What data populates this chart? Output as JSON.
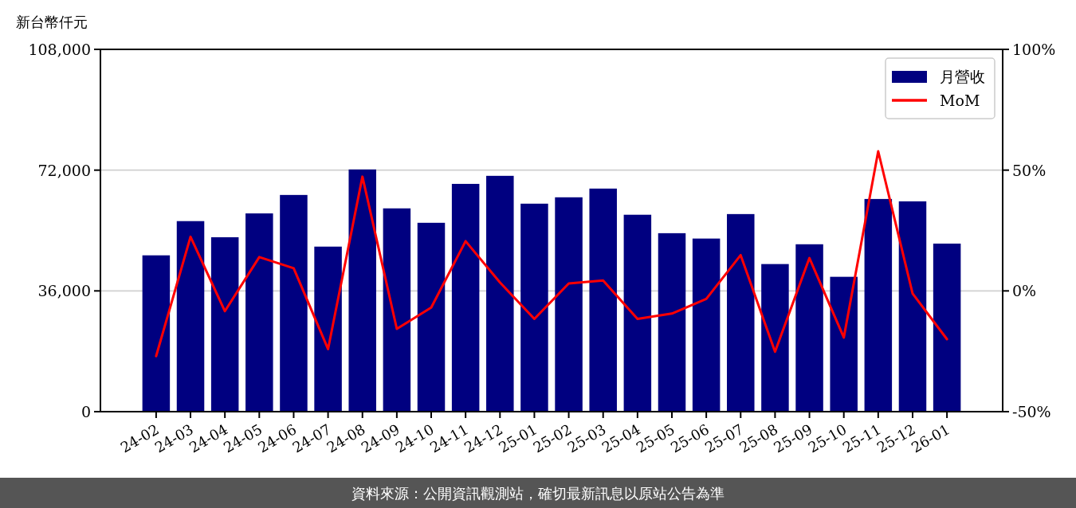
{
  "chart_data": {
    "type": "bar",
    "ylabel": "新台幣仟元",
    "categories": [
      "24-02",
      "24-03",
      "24-04",
      "24-05",
      "24-06",
      "24-07",
      "24-08",
      "24-09",
      "24-10",
      "24-11",
      "24-12",
      "25-01",
      "25-02",
      "25-03",
      "25-04",
      "25-05",
      "25-06",
      "25-07",
      "25-08",
      "25-09",
      "25-10",
      "25-11",
      "25-12",
      "26-01"
    ],
    "series": [
      {
        "name": "月營收",
        "color": "#000080",
        "values": [
          46600,
          56800,
          52000,
          59100,
          64600,
          49200,
          72200,
          60600,
          56300,
          67900,
          70300,
          62000,
          63900,
          66500,
          58700,
          53200,
          51600,
          58900,
          44000,
          49900,
          40200,
          63400,
          62700,
          50100
        ]
      },
      {
        "name": "MoM",
        "type": "line",
        "color": "#ff0000",
        "axis": "y2",
        "values": [
          -27.0,
          22.4,
          -8.4,
          14.0,
          9.4,
          -24.1,
          47.3,
          -15.7,
          -6.9,
          20.6,
          3.5,
          -11.6,
          3.1,
          4.3,
          -11.6,
          -9.4,
          -3.3,
          14.8,
          -25.2,
          13.6,
          -19.3,
          57.8,
          -1.1,
          -20.0
        ]
      }
    ],
    "ylim": [
      0,
      108000
    ],
    "yticks": [
      0,
      {
        "value": 36000,
        "label": "36,000"
      },
      {
        "value": 72000,
        "label": "72,000"
      },
      {
        "value": 108000,
        "label": "108,000"
      }
    ],
    "y2lim": [
      -50,
      100
    ],
    "y2ticks": [
      {
        "value": -50,
        "label": "-50%"
      },
      {
        "value": 0,
        "label": "0%"
      },
      {
        "value": 50,
        "label": "50%"
      },
      {
        "value": 100,
        "label": "100%"
      }
    ],
    "grid": "y",
    "legend": "top right",
    "annotations": [
      "資料來源：公開資訊觀測站，確切最新訊息以原站公告為準"
    ]
  }
}
